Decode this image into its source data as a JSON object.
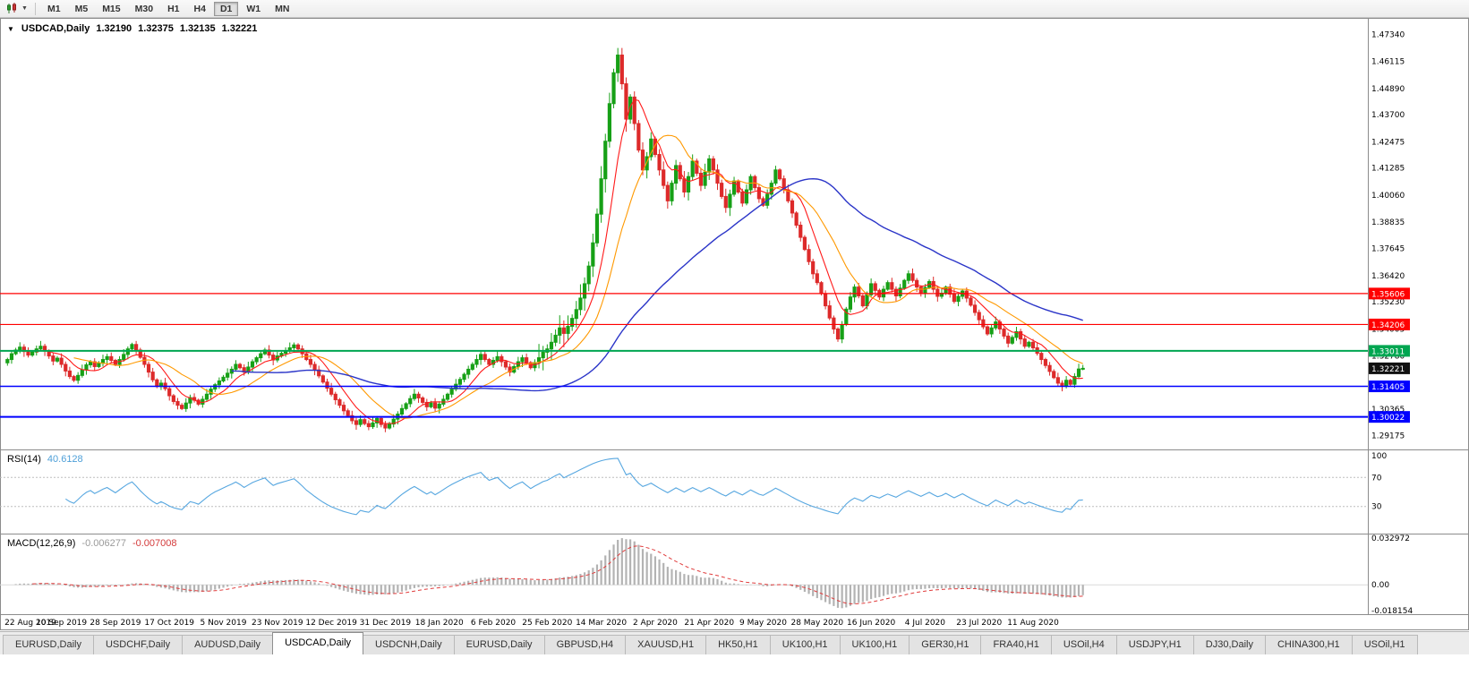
{
  "toolbar": {
    "timeframes": [
      {
        "label": "M1"
      },
      {
        "label": "M5"
      },
      {
        "label": "M15"
      },
      {
        "label": "M30"
      },
      {
        "label": "H1"
      },
      {
        "label": "H4"
      },
      {
        "label": "D1",
        "active": true
      },
      {
        "label": "W1"
      },
      {
        "label": "MN"
      }
    ]
  },
  "chart": {
    "header": {
      "collapse_icon": "▼",
      "symbol": "USDCAD,Daily",
      "open": "1.32190",
      "high": "1.32375",
      "low": "1.32135",
      "close": "1.32221"
    },
    "price_axis": {
      "labels": [
        "1.47340",
        "1.46115",
        "1.44890",
        "1.43700",
        "1.42475",
        "1.41285",
        "1.40060",
        "1.38835",
        "1.37645",
        "1.36420",
        "1.35230",
        "1.34005",
        "1.32780",
        "1.30365",
        "1.29175"
      ]
    },
    "levels": [
      {
        "price": 1.35606,
        "label": "1.35606",
        "color": "#ff0000",
        "width": 1.2
      },
      {
        "price": 1.34206,
        "label": "1.34206",
        "color": "#ff0000",
        "width": 1.2
      },
      {
        "price": 1.33011,
        "label": "1.33011",
        "color": "#00a651",
        "width": 2
      },
      {
        "price": 1.31405,
        "label": "1.31405",
        "color": "#0000ff",
        "width": 1.5
      },
      {
        "price": 1.30022,
        "label": "1.30022",
        "color": "#0000ff",
        "width": 2
      }
    ],
    "current_price": {
      "price": 1.32221,
      "label": "1.32221",
      "color": "#111111"
    },
    "candle_colors": {
      "up": "#17a017",
      "down": "#dd2a2a"
    },
    "ma_lines": [
      {
        "period": 8,
        "color": "#ff1a1a",
        "width": 1.1
      },
      {
        "period": 17,
        "color": "#ff9900",
        "width": 1.1
      },
      {
        "period": 55,
        "color": "#2b35c8",
        "width": 1.4
      }
    ]
  },
  "chart_data": {
    "type": "candlestick",
    "symbol": "USDCAD",
    "timeframe": "Daily",
    "title": "USDCAD,Daily",
    "x_labels": [
      "22 Aug 2019",
      "10 Sep 2019",
      "28 Sep 2019",
      "17 Oct 2019",
      "5 Nov 2019",
      "23 Nov 2019",
      "12 Dec 2019",
      "31 Dec 2019",
      "18 Jan 2020",
      "6 Feb 2020",
      "25 Feb 2020",
      "14 Mar 2020",
      "2 Apr 2020",
      "21 Apr 2020",
      "9 May 2020",
      "28 May 2020",
      "16 Jun 2020",
      "4 Jul 2020",
      "23 Jul 2020",
      "11 Aug 2020"
    ],
    "bars_per_label": 13,
    "y_range": [
      1.2855,
      1.48
    ],
    "closes": [
      1.3262,
      1.3288,
      1.3305,
      1.3318,
      1.3298,
      1.3282,
      1.3296,
      1.331,
      1.3322,
      1.33,
      1.3278,
      1.3255,
      1.3268,
      1.324,
      1.321,
      1.3185,
      1.3168,
      1.319,
      1.3215,
      1.3238,
      1.3252,
      1.323,
      1.3245,
      1.3262,
      1.3275,
      1.3258,
      1.324,
      1.3262,
      1.3285,
      1.331,
      1.333,
      1.3305,
      1.3272,
      1.324,
      1.3205,
      1.317,
      1.314,
      1.3155,
      1.313,
      1.3098,
      1.3072,
      1.3055,
      1.304,
      1.3065,
      1.309,
      1.3078,
      1.306,
      1.3082,
      1.3105,
      1.3128,
      1.3148,
      1.3165,
      1.3182,
      1.32,
      1.3218,
      1.324,
      1.3225,
      1.3205,
      1.3228,
      1.3252,
      1.327,
      1.3288,
      1.3305,
      1.3282,
      1.326,
      1.3278,
      1.329,
      1.3302,
      1.3315,
      1.3328,
      1.331,
      1.3288,
      1.3262,
      1.324,
      1.3215,
      1.3188,
      1.316,
      1.3132,
      1.3105,
      1.308,
      1.3055,
      1.303,
      1.3008,
      1.2985,
      1.2968,
      1.299,
      1.2972,
      1.2958,
      1.2975,
      1.2995,
      1.2968,
      1.2952,
      1.297,
      1.2992,
      1.3015,
      1.304,
      1.3062,
      1.3085,
      1.3105,
      1.3088,
      1.3068,
      1.3048,
      1.3065,
      1.3042,
      1.306,
      1.3082,
      1.3105,
      1.3128,
      1.315,
      1.3172,
      1.3195,
      1.3218,
      1.324,
      1.3262,
      1.3285,
      1.3262,
      1.324,
      1.3258,
      1.3275,
      1.3252,
      1.3228,
      1.3205,
      1.323,
      1.3252,
      1.327,
      1.3248,
      1.3225,
      1.3248,
      1.327,
      1.3295,
      1.331,
      1.334,
      1.3372,
      1.3405,
      1.338,
      1.3412,
      1.3448,
      1.3488,
      1.354,
      1.3605,
      1.3685,
      1.379,
      1.392,
      1.408,
      1.425,
      1.442,
      1.456,
      1.464,
      1.451,
      1.435,
      1.445,
      1.433,
      1.421,
      1.412,
      1.418,
      1.426,
      1.419,
      1.412,
      1.405,
      1.398,
      1.406,
      1.414,
      1.408,
      1.402,
      1.409,
      1.416,
      1.4105,
      1.405,
      1.411,
      1.417,
      1.412,
      1.406,
      1.4,
      1.395,
      1.401,
      1.407,
      1.402,
      1.397,
      1.403,
      1.409,
      1.404,
      1.399,
      1.396,
      1.401,
      1.406,
      1.412,
      1.408,
      1.403,
      1.398,
      1.3925,
      1.387,
      1.3815,
      1.376,
      1.3705,
      1.365,
      1.361,
      1.356,
      1.3505,
      1.345,
      1.34,
      1.3355,
      1.342,
      1.349,
      1.3545,
      1.359,
      1.355,
      1.3505,
      1.3555,
      1.3605,
      1.3575,
      1.3545,
      1.358,
      1.361,
      1.358,
      1.355,
      1.3585,
      1.362,
      1.365,
      1.362,
      1.359,
      1.356,
      1.3588,
      1.3615,
      1.358,
      1.3548,
      1.3562,
      1.359,
      1.3558,
      1.3525,
      1.3548,
      1.3572,
      1.354,
      1.3508,
      1.3475,
      1.3442,
      1.341,
      1.3378,
      1.3405,
      1.3432,
      1.34,
      1.3368,
      1.3336,
      1.3362,
      1.3388,
      1.3355,
      1.3322,
      1.334,
      1.3315,
      1.329,
      1.3262,
      1.3235,
      1.3208,
      1.318,
      1.3155,
      1.3142,
      1.3168,
      1.315,
      1.3185,
      1.3219,
      1.32221
    ],
    "last_candle": {
      "open": 1.3219,
      "high": 1.32375,
      "low": 1.32135,
      "close": 1.32221
    },
    "wick_pattern": [
      8,
      16,
      10,
      22,
      13,
      19,
      7,
      15,
      24,
      11
    ],
    "wick_unit": 0.0001,
    "volatility_zones": [
      {
        "from": 128,
        "to": 150,
        "mult": 2.6
      },
      {
        "from": 150,
        "to": 175,
        "mult": 1.6
      }
    ],
    "high_clamp": 1.4672,
    "low_clamp": 1.2915,
    "horizontal_lines": [
      1.35606,
      1.34206,
      1.33011,
      1.31405,
      1.30022
    ]
  },
  "rsi": {
    "title": "RSI(14)",
    "value": "40.6128",
    "period": 14,
    "levels": [
      70,
      30
    ],
    "axis_labels": [
      "100",
      "70",
      "30"
    ],
    "color": "#57a7e0"
  },
  "macd": {
    "title": "MACD(12,26,9)",
    "value_main": "-0.006277",
    "value_signal": "-0.007008",
    "fast": 12,
    "slow": 26,
    "signal": 9,
    "range": [
      -0.018154,
      0.032972
    ],
    "axis_values": [
      0.032972,
      0,
      -0.018154
    ],
    "axis_labels": [
      "0.032972",
      "0.00",
      "-0.018154"
    ],
    "hist_color": "#b3b3b3",
    "signal_color": "#e03c3c"
  },
  "tab_bar": {
    "tabs": [
      {
        "label": "EURUSD,Daily"
      },
      {
        "label": "USDCHF,Daily"
      },
      {
        "label": "AUDUSD,Daily"
      },
      {
        "label": "USDCAD,Daily",
        "active": true
      },
      {
        "label": "USDCNH,Daily"
      },
      {
        "label": "EURUSD,Daily"
      },
      {
        "label": "GBPUSD,H4"
      },
      {
        "label": "XAUUSD,H1"
      },
      {
        "label": "HK50,H1"
      },
      {
        "label": "UK100,H1"
      },
      {
        "label": "UK100,H1"
      },
      {
        "label": "GER30,H1"
      },
      {
        "label": "FRA40,H1"
      },
      {
        "label": "USOil,H4"
      },
      {
        "label": "USDJPY,H1"
      },
      {
        "label": "DJ30,Daily"
      },
      {
        "label": "CHINA300,H1"
      },
      {
        "label": "USOil,H1"
      }
    ]
  }
}
